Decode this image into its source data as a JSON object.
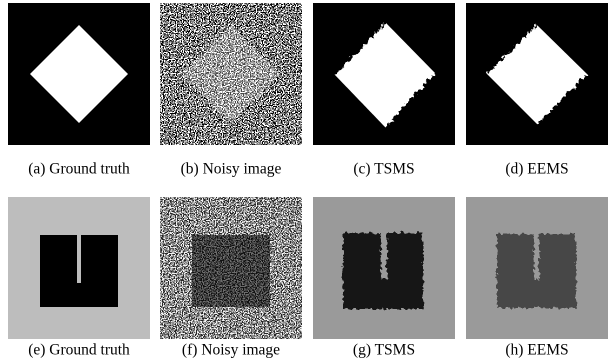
{
  "figure": {
    "panels": [
      {
        "caption": "(a) Ground truth"
      },
      {
        "caption": "(b) Noisy image"
      },
      {
        "caption": "(c) TSMS"
      },
      {
        "caption": "(d) EEMS"
      },
      {
        "caption": "(e) Ground truth"
      },
      {
        "caption": "(f) Noisy image"
      },
      {
        "caption": "(g) TSMS"
      },
      {
        "caption": "(h) EEMS"
      }
    ]
  }
}
